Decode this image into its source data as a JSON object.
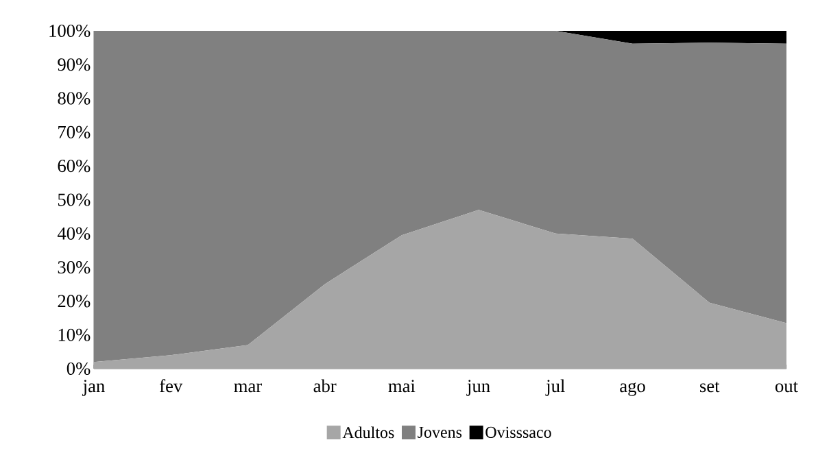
{
  "chart_data": {
    "type": "area",
    "stacked": true,
    "categories": [
      "jan",
      "fev",
      "mar",
      "abr",
      "mai",
      "jun",
      "jul",
      "ago",
      "set",
      "out"
    ],
    "series": [
      {
        "name": "Adultos",
        "color": "#a6a6a6",
        "values": [
          2,
          4,
          7,
          25,
          39.5,
          47,
          40,
          38.5,
          19.5,
          13.5
        ]
      },
      {
        "name": "Jovens",
        "color": "#808080",
        "values": [
          98,
          96,
          93,
          75,
          60.5,
          53,
          60,
          57.7,
          77,
          82.7
        ]
      },
      {
        "name": "Ovisssaco",
        "color": "#000000",
        "values": [
          0,
          0,
          0,
          0,
          0,
          0,
          0,
          3.8,
          3.5,
          3.8
        ]
      }
    ],
    "ylim": [
      0,
      100
    ],
    "yticks": [
      {
        "value": 0,
        "label": "0%"
      },
      {
        "value": 10,
        "label": "10%"
      },
      {
        "value": 20,
        "label": "20%"
      },
      {
        "value": 30,
        "label": "30%"
      },
      {
        "value": 40,
        "label": "40%"
      },
      {
        "value": 50,
        "label": "50%"
      },
      {
        "value": 60,
        "label": "60%"
      },
      {
        "value": 70,
        "label": "70%"
      },
      {
        "value": 80,
        "label": "80%"
      },
      {
        "value": 90,
        "label": "90%"
      },
      {
        "value": 100,
        "label": "100%"
      }
    ],
    "legend": "bottom"
  }
}
